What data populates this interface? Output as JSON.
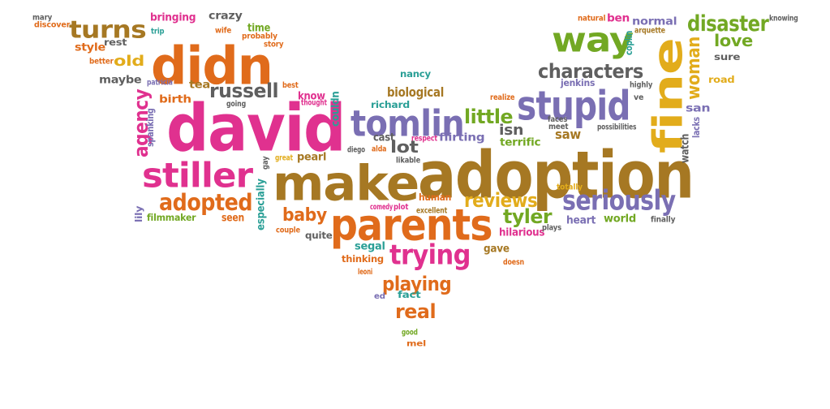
{
  "palette": {
    "magenta": "#e0318f",
    "orange": "#e06b1b",
    "brown": "#a67823",
    "purple": "#7a6fb3",
    "gray": "#5f5f5f",
    "green": "#72a823",
    "teal": "#2a9f96",
    "gold": "#e2ac1b"
  },
  "words": [
    {
      "text": "adoption",
      "color": "brown"
    },
    {
      "text": "david",
      "color": "magenta"
    },
    {
      "text": "make",
      "color": "brown"
    },
    {
      "text": "didn",
      "color": "orange"
    },
    {
      "text": "parents",
      "color": "orange"
    },
    {
      "text": "fine",
      "color": "gold"
    },
    {
      "text": "stupid",
      "color": "purple"
    },
    {
      "text": "tomlin",
      "color": "purple"
    },
    {
      "text": "stiller",
      "color": "magenta"
    },
    {
      "text": "way",
      "color": "green"
    },
    {
      "text": "seriously",
      "color": "purple"
    },
    {
      "text": "trying",
      "color": "magenta"
    },
    {
      "text": "turns",
      "color": "brown"
    },
    {
      "text": "adopted",
      "color": "orange"
    },
    {
      "text": "characters",
      "color": "gray"
    },
    {
      "text": "disaster",
      "color": "green"
    },
    {
      "text": "agency",
      "color": "magenta"
    },
    {
      "text": "russell",
      "color": "gray"
    },
    {
      "text": "woman",
      "color": "gold"
    },
    {
      "text": "little",
      "color": "green"
    },
    {
      "text": "playing",
      "color": "orange"
    },
    {
      "text": "real",
      "color": "orange"
    },
    {
      "text": "reviews",
      "color": "gold"
    },
    {
      "text": "tyler",
      "color": "green"
    },
    {
      "text": "baby",
      "color": "orange"
    },
    {
      "text": "love",
      "color": "green"
    },
    {
      "text": "lot",
      "color": "gray"
    },
    {
      "text": "biological",
      "color": "brown"
    },
    {
      "text": "old",
      "color": "gold"
    },
    {
      "text": "isn",
      "color": "gray"
    },
    {
      "text": "saw",
      "color": "brown"
    },
    {
      "text": "maybe",
      "color": "gray"
    },
    {
      "text": "birth",
      "color": "orange"
    },
    {
      "text": "tea",
      "color": "brown"
    },
    {
      "text": "bringing",
      "color": "magenta"
    },
    {
      "text": "crazy",
      "color": "gray"
    },
    {
      "text": "time",
      "color": "green"
    },
    {
      "text": "style",
      "color": "orange"
    },
    {
      "text": "rest",
      "color": "gray"
    },
    {
      "text": "normal",
      "color": "purple"
    },
    {
      "text": "ben",
      "color": "magenta"
    },
    {
      "text": "jenkins",
      "color": "purple"
    },
    {
      "text": "sure",
      "color": "gray"
    },
    {
      "text": "road",
      "color": "gold"
    },
    {
      "text": "san",
      "color": "purple"
    },
    {
      "text": "watch",
      "color": "gray"
    },
    {
      "text": "terrific",
      "color": "green"
    },
    {
      "text": "cast",
      "color": "gray"
    },
    {
      "text": "flirting",
      "color": "purple"
    },
    {
      "text": "richard",
      "color": "teal"
    },
    {
      "text": "pearl",
      "color": "brown"
    },
    {
      "text": "know",
      "color": "magenta"
    },
    {
      "text": "couldn",
      "color": "teal"
    },
    {
      "text": "hilarious",
      "color": "magenta"
    },
    {
      "text": "segal",
      "color": "teal"
    },
    {
      "text": "thinking",
      "color": "orange"
    },
    {
      "text": "gave",
      "color": "brown"
    },
    {
      "text": "fact",
      "color": "teal"
    },
    {
      "text": "seen",
      "color": "orange"
    },
    {
      "text": "heart",
      "color": "purple"
    },
    {
      "text": "world",
      "color": "green"
    },
    {
      "text": "human",
      "color": "orange"
    },
    {
      "text": "especially",
      "color": "teal"
    },
    {
      "text": "quite",
      "color": "gray"
    },
    {
      "text": "filmmaker",
      "color": "green"
    },
    {
      "text": "nancy",
      "color": "teal"
    },
    {
      "text": "mary",
      "color": "gray"
    },
    {
      "text": "discover",
      "color": "orange"
    },
    {
      "text": "trip",
      "color": "teal"
    },
    {
      "text": "wife",
      "color": "orange"
    },
    {
      "text": "probably",
      "color": "orange"
    },
    {
      "text": "story",
      "color": "orange"
    },
    {
      "text": "better",
      "color": "orange"
    },
    {
      "text": "patricia",
      "color": "purple"
    },
    {
      "text": "spanking",
      "color": "purple"
    },
    {
      "text": "lily",
      "color": "purple"
    },
    {
      "text": "best",
      "color": "orange"
    },
    {
      "text": "thought",
      "color": "magenta"
    },
    {
      "text": "going",
      "color": "gray"
    },
    {
      "text": "gay",
      "color": "gray"
    },
    {
      "text": "great",
      "color": "gold"
    },
    {
      "text": "diego",
      "color": "gray"
    },
    {
      "text": "alda",
      "color": "orange"
    },
    {
      "text": "respect",
      "color": "magenta"
    },
    {
      "text": "likable",
      "color": "gray"
    },
    {
      "text": "comedy",
      "color": "magenta"
    },
    {
      "text": "plot",
      "color": "magenta"
    },
    {
      "text": "excellent",
      "color": "brown"
    },
    {
      "text": "couple",
      "color": "orange"
    },
    {
      "text": "leoni",
      "color": "orange"
    },
    {
      "text": "ed",
      "color": "purple"
    },
    {
      "text": "good",
      "color": "green"
    },
    {
      "text": "mel",
      "color": "orange"
    },
    {
      "text": "doesn",
      "color": "orange"
    },
    {
      "text": "plays",
      "color": "gray"
    },
    {
      "text": "finally",
      "color": "gray"
    },
    {
      "text": "totally",
      "color": "gold"
    },
    {
      "text": "faces",
      "color": "gray"
    },
    {
      "text": "meet",
      "color": "gray"
    },
    {
      "text": "possibilities",
      "color": "gray"
    },
    {
      "text": "realize",
      "color": "orange"
    },
    {
      "text": "highly",
      "color": "gray"
    },
    {
      "text": "ve",
      "color": "gray"
    },
    {
      "text": "lacks",
      "color": "purple"
    },
    {
      "text": "coplin",
      "color": "teal"
    },
    {
      "text": "arquette",
      "color": "brown"
    },
    {
      "text": "natural",
      "color": "orange"
    },
    {
      "text": "knowing",
      "color": "gray"
    }
  ]
}
